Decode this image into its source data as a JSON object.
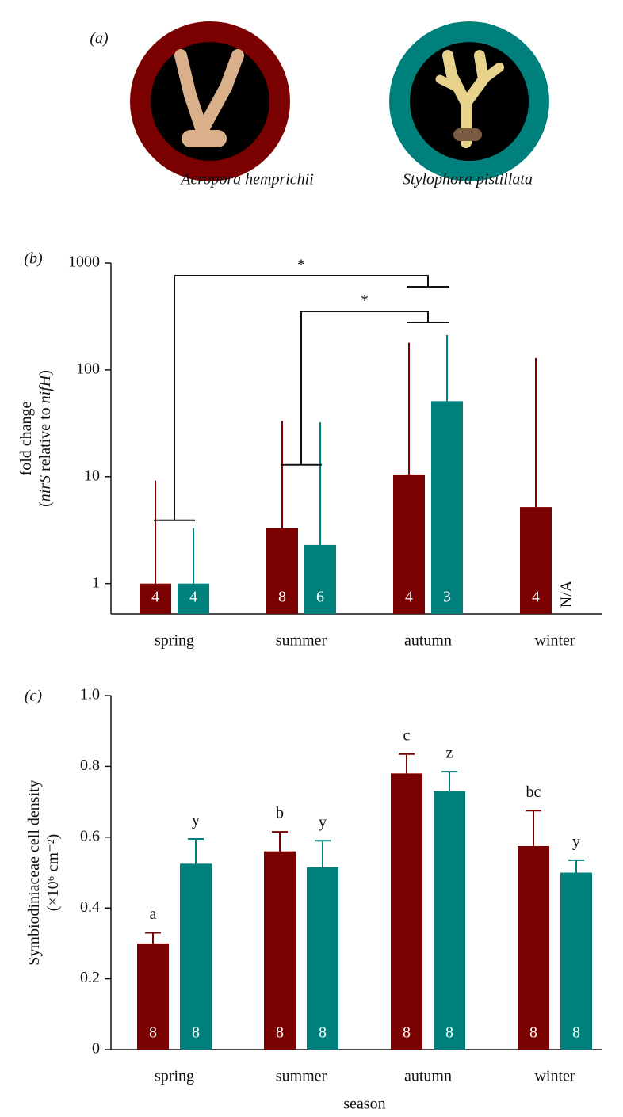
{
  "panel_a": {
    "label": "(a)",
    "species": [
      {
        "name": "Acropora hemprichii",
        "color": "#7b0000"
      },
      {
        "name": "Stylophora pistillata",
        "color": "#00807c"
      }
    ]
  },
  "chart_data": [
    {
      "type": "bar",
      "panel_label": "(b)",
      "log": true,
      "ylabel": [
        [
          "fold change"
        ],
        [
          "(",
          "nirS",
          " relative to ",
          "nifH",
          ")"
        ]
      ],
      "ylabel_italic": [
        [
          false
        ],
        [
          false,
          true,
          false,
          true,
          false
        ]
      ],
      "categories": [
        "spring",
        "summer",
        "autumn",
        "winter"
      ],
      "ylim": [
        0.52,
        1000
      ],
      "yticks": [
        1,
        10,
        100,
        1000
      ],
      "error_caps": false,
      "series": [
        {
          "color": "#7b0000",
          "values": [
            1.0,
            3.3,
            10.5,
            5.2
          ],
          "errors": [
            8.2,
            30,
            169,
            124
          ],
          "n": [
            4,
            8,
            4,
            4
          ]
        },
        {
          "color": "#00807c",
          "values": [
            1.0,
            2.3,
            51,
            null
          ],
          "errors": [
            2.3,
            30,
            161,
            null
          ],
          "n": [
            4,
            6,
            3,
            "N/A"
          ]
        }
      ],
      "brackets": [
        {
          "label": "*",
          "from": "spring",
          "to": "autumn"
        },
        {
          "label": "*",
          "from": "summer",
          "to": "autumn"
        }
      ]
    },
    {
      "type": "bar",
      "panel_label": "(c)",
      "log": false,
      "ylabel": [
        [
          "Symbiodiniaceae cell density"
        ],
        [
          "(×10⁶ cm⁻²)"
        ]
      ],
      "ylabel_italic": [
        [
          false
        ],
        [
          false
        ]
      ],
      "xlabel": "season",
      "categories": [
        "spring",
        "summer",
        "autumn",
        "winter"
      ],
      "ylim": [
        0,
        1.0
      ],
      "yticks": [
        0,
        0.2,
        0.4,
        0.6,
        0.8,
        {
          "value": 1.0,
          "label": "1.0"
        }
      ],
      "error_caps": true,
      "series": [
        {
          "color": "#7b0000",
          "values": [
            0.3,
            0.56,
            0.78,
            0.575
          ],
          "errors": [
            0.03,
            0.055,
            0.055,
            0.1
          ],
          "n": [
            8,
            8,
            8,
            8
          ],
          "letters": [
            "a",
            "b",
            "c",
            "bc"
          ]
        },
        {
          "color": "#00807c",
          "values": [
            0.525,
            0.515,
            0.73,
            0.5
          ],
          "errors": [
            0.07,
            0.075,
            0.055,
            0.035
          ],
          "n": [
            8,
            8,
            8,
            8
          ],
          "letters": [
            "y",
            "y",
            "z",
            "y"
          ]
        }
      ]
    }
  ]
}
